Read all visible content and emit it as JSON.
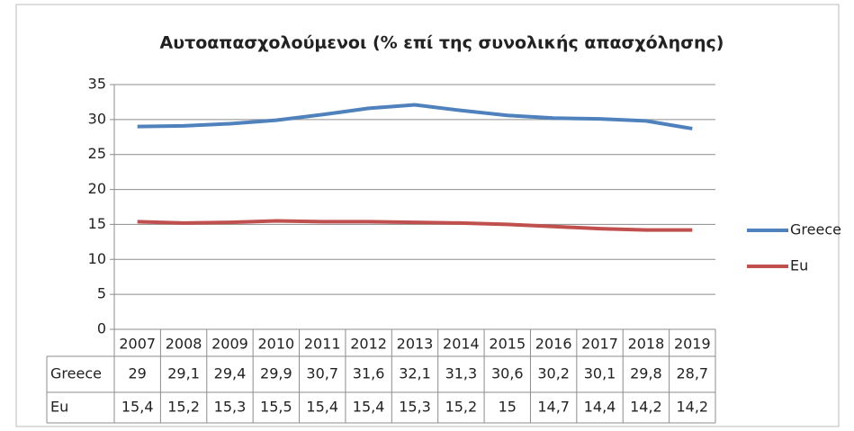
{
  "chart_data": {
    "type": "line",
    "title": "Αυτοαπασχολούμενοι (% επί της συνολικής απασχόλησης)",
    "categories": [
      "2007",
      "2008",
      "2009",
      "2010",
      "2011",
      "2012",
      "2013",
      "2014",
      "2015",
      "2016",
      "2017",
      "2018",
      "2019"
    ],
    "series": [
      {
        "name": "Greece",
        "color": "#4f81bd",
        "values": [
          29,
          29.1,
          29.4,
          29.9,
          30.7,
          31.6,
          32.1,
          31.3,
          30.6,
          30.2,
          30.1,
          29.8,
          28.7
        ],
        "value_labels": [
          "29",
          "29,1",
          "29,4",
          "29,9",
          "30,7",
          "31,6",
          "32,1",
          "31,3",
          "30,6",
          "30,2",
          "30,1",
          "29,8",
          "28,7"
        ]
      },
      {
        "name": "Eu",
        "color": "#c0504d",
        "values": [
          15.4,
          15.2,
          15.3,
          15.5,
          15.4,
          15.4,
          15.3,
          15.2,
          15,
          14.7,
          14.4,
          14.2,
          14.2
        ],
        "value_labels": [
          "15,4",
          "15,2",
          "15,3",
          "15,5",
          "15,4",
          "15,4",
          "15,3",
          "15,2",
          "15",
          "14,7",
          "14,4",
          "14,2",
          "14,2"
        ]
      }
    ],
    "ylim": [
      0,
      35
    ],
    "yticks": [
      0,
      5,
      10,
      15,
      20,
      25,
      30,
      35
    ],
    "grid": true,
    "legend": "right",
    "data_table": true
  }
}
